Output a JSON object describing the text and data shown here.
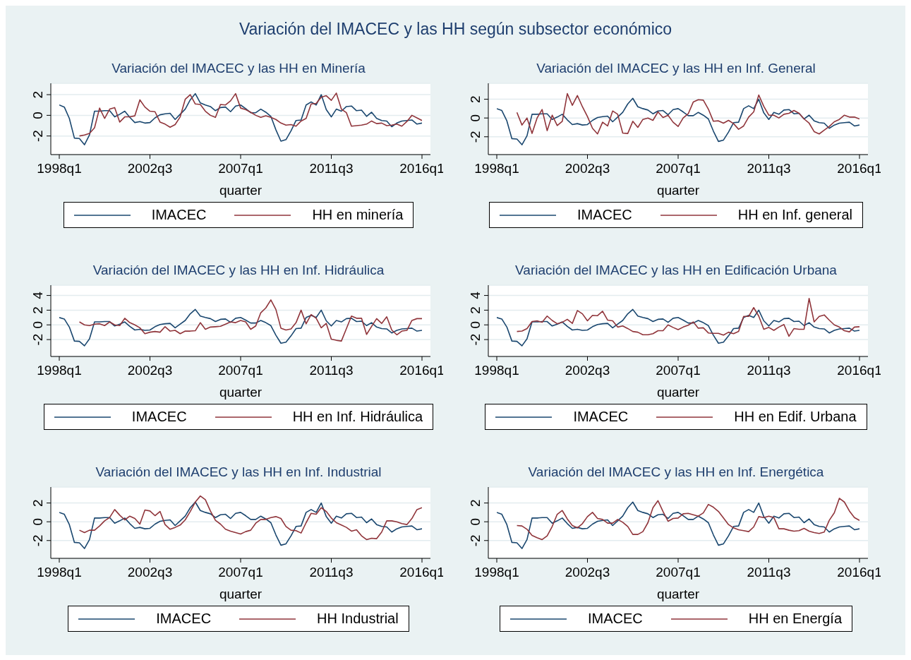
{
  "chart_data": [
    {
      "type": "line",
      "annotations": [
        "Variación del IMACEC y las HH según subsector económico"
      ],
      "title": "Variación del IMACEC y las HH en Minería",
      "xlabel": "quarter",
      "grid": "y",
      "legend": "bottom",
      "ylim": [
        -3.8,
        3.1
      ],
      "yticks": [
        -2,
        0,
        2
      ],
      "categories": [
        "1998q1",
        null,
        null,
        null,
        null,
        null,
        null,
        null,
        null,
        null,
        null,
        null,
        null,
        null,
        null,
        null,
        null,
        null,
        "2002q3",
        null,
        null,
        null,
        null,
        null,
        null,
        null,
        null,
        null,
        null,
        null,
        null,
        null,
        null,
        null,
        null,
        null,
        "2007q1",
        null,
        null,
        null,
        null,
        null,
        null,
        null,
        null,
        null,
        null,
        null,
        null,
        null,
        null,
        null,
        null,
        null,
        "2011q3",
        null,
        null,
        null,
        null,
        null,
        null,
        null,
        null,
        null,
        null,
        null,
        null,
        null,
        null,
        null,
        null,
        null,
        "2016q1"
      ],
      "series": [
        {
          "name": "IMACEC",
          "color": "#1a476f",
          "values": [
            1.0,
            0.8,
            -0.3,
            -2.2,
            -2.25,
            -2.85,
            -1.9,
            0.4,
            0.4,
            0.45,
            0.45,
            -0.15,
            0.1,
            0.4,
            -0.2,
            -0.7,
            -0.6,
            -0.75,
            -0.7,
            -0.25,
            0.05,
            0.15,
            0.2,
            -0.4,
            0.1,
            0.6,
            1.5,
            2.1,
            1.2,
            1.0,
            0.85,
            0.45,
            0.75,
            0.8,
            0.35,
            0.9,
            1.0,
            0.65,
            0.25,
            0.25,
            0.6,
            0.3,
            -0.1,
            -1.4,
            -2.5,
            -2.35,
            -1.5,
            -0.5,
            -0.45,
            1.0,
            1.3,
            1.0,
            2.0,
            0.55,
            -0.15,
            0.6,
            0.4,
            0.85,
            0.9,
            0.45,
            0.5,
            -0.1,
            0.3,
            -0.3,
            -0.5,
            -0.55,
            -1.1,
            -0.75,
            -0.55,
            -0.5,
            -0.45,
            -0.85,
            -0.75
          ]
        },
        {
          "name": "HH en minería",
          "color": "#90353b",
          "values": [
            null,
            null,
            null,
            null,
            -2.0,
            -1.9,
            -1.75,
            -1.2,
            0.7,
            -0.3,
            0.6,
            0.75,
            -0.65,
            -0.15,
            -0.15,
            -0.05,
            1.5,
            0.8,
            0.4,
            0.35,
            -0.65,
            -0.85,
            -1.15,
            -0.9,
            -0.15,
            1.55,
            2.0,
            1.1,
            1.05,
            0.4,
            0.0,
            -0.2,
            1.05,
            1.0,
            1.4,
            2.1,
            0.7,
            0.55,
            0.3,
            0.0,
            -0.2,
            -0.05,
            -0.2,
            -0.4,
            -0.75,
            -0.95,
            -0.9,
            -1.05,
            -0.55,
            -0.3,
            1.1,
            1.15,
            1.75,
            1.9,
            1.45,
            2.15,
            0.6,
            0.25,
            -1.05,
            -1.0,
            -0.95,
            -0.85,
            -0.55,
            -0.8,
            -0.75,
            -1.0,
            -0.95,
            -0.85,
            -1.05,
            -0.6,
            0.0,
            -0.25,
            -0.5
          ]
        }
      ]
    },
    {
      "type": "line",
      "title": "Variación del IMACEC y las HH en Inf. General",
      "xlabel": "quarter",
      "grid": "y",
      "legend": "bottom",
      "ylim": [
        -3.9,
        3.7
      ],
      "yticks": [
        -2,
        0,
        2
      ],
      "categories": [
        "1998q1",
        null,
        null,
        null,
        null,
        null,
        null,
        null,
        null,
        null,
        null,
        null,
        null,
        null,
        null,
        null,
        null,
        null,
        "2002q3",
        null,
        null,
        null,
        null,
        null,
        null,
        null,
        null,
        null,
        null,
        null,
        null,
        null,
        null,
        null,
        null,
        null,
        "2007q1",
        null,
        null,
        null,
        null,
        null,
        null,
        null,
        null,
        null,
        null,
        null,
        null,
        null,
        null,
        null,
        null,
        null,
        "2011q3",
        null,
        null,
        null,
        null,
        null,
        null,
        null,
        null,
        null,
        null,
        null,
        null,
        null,
        null,
        null,
        null,
        null,
        "2016q1"
      ],
      "series": [
        {
          "name": "IMACEC",
          "color": "#1a476f",
          "values": [
            1.0,
            0.8,
            -0.3,
            -2.2,
            -2.25,
            -2.85,
            -1.9,
            0.4,
            0.4,
            0.45,
            0.45,
            -0.15,
            0.1,
            0.4,
            -0.2,
            -0.7,
            -0.6,
            -0.75,
            -0.7,
            -0.25,
            0.05,
            0.15,
            0.2,
            -0.4,
            0.1,
            0.6,
            1.5,
            2.1,
            1.2,
            1.0,
            0.85,
            0.45,
            0.75,
            0.8,
            0.35,
            0.9,
            1.0,
            0.65,
            0.25,
            0.25,
            0.6,
            0.3,
            -0.1,
            -1.4,
            -2.5,
            -2.35,
            -1.5,
            -0.5,
            -0.45,
            1.0,
            1.3,
            1.0,
            2.0,
            0.55,
            -0.15,
            0.6,
            0.4,
            0.85,
            0.9,
            0.45,
            0.5,
            -0.1,
            0.3,
            -0.3,
            -0.5,
            -0.55,
            -1.1,
            -0.75,
            -0.55,
            -0.5,
            -0.45,
            -0.85,
            -0.75
          ]
        },
        {
          "name": "HH en Inf. general",
          "color": "#90353b",
          "values": [
            null,
            null,
            null,
            null,
            0.6,
            -0.75,
            0.0,
            -1.65,
            0.0,
            0.9,
            -1.35,
            0.3,
            -0.8,
            -0.35,
            2.6,
            1.35,
            2.4,
            1.2,
            0.15,
            -1.1,
            -1.7,
            -0.45,
            -0.85,
            0.75,
            0.4,
            -1.6,
            -1.65,
            -0.35,
            -1.0,
            -0.15,
            0.0,
            -0.25,
            0.65,
            0.05,
            0.3,
            -0.45,
            -0.9,
            0.0,
            0.45,
            1.7,
            1.95,
            1.9,
            0.95,
            -0.35,
            -0.3,
            -0.55,
            -0.25,
            -0.6,
            -1.2,
            -0.85,
            0.1,
            0.65,
            2.45,
            1.25,
            0.3,
            0.3,
            0.0,
            0.4,
            0.5,
            0.8,
            0.5,
            -0.1,
            -0.55,
            -1.45,
            -1.7,
            -1.3,
            -0.9,
            -0.4,
            -0.15,
            0.3,
            0.1,
            0.1,
            -0.1
          ]
        }
      ]
    },
    {
      "type": "line",
      "title": "Variación del IMACEC y las HH en Inf. Hidráulica",
      "xlabel": "quarter",
      "grid": "y",
      "legend": "bottom",
      "ylim": [
        -4.3,
        5.4
      ],
      "yticks": [
        -2,
        0,
        2,
        4
      ],
      "categories": [
        "1998q1",
        null,
        null,
        null,
        null,
        null,
        null,
        null,
        null,
        null,
        null,
        null,
        null,
        null,
        null,
        null,
        null,
        null,
        "2002q3",
        null,
        null,
        null,
        null,
        null,
        null,
        null,
        null,
        null,
        null,
        null,
        null,
        null,
        null,
        null,
        null,
        null,
        "2007q1",
        null,
        null,
        null,
        null,
        null,
        null,
        null,
        null,
        null,
        null,
        null,
        null,
        null,
        null,
        null,
        null,
        null,
        "2011q3",
        null,
        null,
        null,
        null,
        null,
        null,
        null,
        null,
        null,
        null,
        null,
        null,
        null,
        null,
        null,
        null,
        null,
        "2016q1"
      ],
      "series": [
        {
          "name": "IMACEC",
          "color": "#1a476f",
          "values": [
            1.0,
            0.8,
            -0.3,
            -2.2,
            -2.25,
            -2.85,
            -1.9,
            0.4,
            0.4,
            0.45,
            0.45,
            -0.15,
            0.1,
            0.4,
            -0.2,
            -0.7,
            -0.6,
            -0.75,
            -0.7,
            -0.25,
            0.05,
            0.15,
            0.2,
            -0.4,
            0.1,
            0.6,
            1.5,
            2.1,
            1.2,
            1.0,
            0.85,
            0.45,
            0.75,
            0.8,
            0.35,
            0.9,
            1.0,
            0.65,
            0.25,
            0.25,
            0.6,
            0.3,
            -0.1,
            -1.4,
            -2.5,
            -2.35,
            -1.5,
            -0.5,
            -0.45,
            1.0,
            1.3,
            1.0,
            2.0,
            0.55,
            -0.15,
            0.6,
            0.4,
            0.85,
            0.9,
            0.45,
            0.5,
            -0.1,
            0.3,
            -0.3,
            -0.5,
            -0.55,
            -1.1,
            -0.75,
            -0.55,
            -0.5,
            -0.45,
            -0.85,
            -0.75
          ]
        },
        {
          "name": "HH en Inf. Hidráulica",
          "color": "#90353b",
          "values": [
            null,
            null,
            null,
            null,
            0.4,
            0.0,
            -0.1,
            0.1,
            0.15,
            -0.1,
            0.4,
            0.0,
            -0.1,
            0.9,
            0.3,
            0.0,
            -0.4,
            -1.2,
            -1.0,
            -0.9,
            -1.0,
            -0.25,
            -0.85,
            -0.75,
            -1.2,
            -0.85,
            -0.85,
            -0.8,
            0.3,
            -0.6,
            -0.3,
            -0.25,
            -0.2,
            0.1,
            0.4,
            0.3,
            0.6,
            0.4,
            -0.6,
            -0.15,
            1.65,
            2.3,
            3.4,
            2.1,
            -0.45,
            -0.7,
            -0.55,
            0.3,
            2.0,
            0.15,
            1.4,
            0.9,
            -0.4,
            0.2,
            -1.95,
            -2.1,
            -2.2,
            -0.5,
            1.2,
            0.9,
            0.9,
            -1.3,
            -0.2,
            0.85,
            0.2,
            1.1,
            -0.7,
            -1.35,
            -0.85,
            -0.75,
            0.6,
            0.85,
            0.85
          ]
        }
      ]
    },
    {
      "type": "line",
      "title": "Variación del IMACEC y las HH en Edificación Urbana",
      "xlabel": "quarter",
      "grid": "y",
      "legend": "bottom",
      "ylim": [
        -4.3,
        5.4
      ],
      "yticks": [
        -2,
        0,
        2,
        4
      ],
      "categories": [
        "1998q1",
        null,
        null,
        null,
        null,
        null,
        null,
        null,
        null,
        null,
        null,
        null,
        null,
        null,
        null,
        null,
        null,
        null,
        "2002q3",
        null,
        null,
        null,
        null,
        null,
        null,
        null,
        null,
        null,
        null,
        null,
        null,
        null,
        null,
        null,
        null,
        null,
        "2007q1",
        null,
        null,
        null,
        null,
        null,
        null,
        null,
        null,
        null,
        null,
        null,
        null,
        null,
        null,
        null,
        null,
        null,
        "2011q3",
        null,
        null,
        null,
        null,
        null,
        null,
        null,
        null,
        null,
        null,
        null,
        null,
        null,
        null,
        null,
        null,
        null,
        "2016q1"
      ],
      "series": [
        {
          "name": "IMACEC",
          "color": "#1a476f",
          "values": [
            1.0,
            0.8,
            -0.3,
            -2.2,
            -2.25,
            -2.85,
            -1.9,
            0.4,
            0.4,
            0.45,
            0.45,
            -0.15,
            0.1,
            0.4,
            -0.2,
            -0.7,
            -0.6,
            -0.75,
            -0.7,
            -0.25,
            0.05,
            0.15,
            0.2,
            -0.4,
            0.1,
            0.6,
            1.5,
            2.1,
            1.2,
            1.0,
            0.85,
            0.45,
            0.75,
            0.8,
            0.35,
            0.9,
            1.0,
            0.65,
            0.25,
            0.25,
            0.6,
            0.3,
            -0.1,
            -1.4,
            -2.5,
            -2.35,
            -1.5,
            -0.5,
            -0.45,
            1.0,
            1.3,
            1.0,
            2.0,
            0.55,
            -0.15,
            0.6,
            0.4,
            0.85,
            0.9,
            0.45,
            0.5,
            -0.1,
            0.3,
            -0.3,
            -0.5,
            -0.55,
            -1.1,
            -0.75,
            -0.55,
            -0.5,
            -0.45,
            -0.85,
            -0.75
          ]
        },
        {
          "name": "HH en Edif. Urbana",
          "color": "#90353b",
          "values": [
            null,
            null,
            null,
            null,
            -0.9,
            -0.85,
            -0.5,
            0.45,
            0.55,
            0.35,
            1.2,
            0.6,
            0.15,
            0.35,
            0.75,
            0.2,
            1.95,
            1.5,
            0.55,
            1.3,
            1.25,
            1.85,
            0.65,
            0.55,
            -0.3,
            -0.15,
            -0.5,
            -0.9,
            -1.0,
            -1.35,
            -1.35,
            -1.2,
            -0.8,
            -0.8,
            0.0,
            -0.35,
            -0.65,
            -0.3,
            -0.05,
            0.4,
            -0.45,
            -0.4,
            -1.1,
            -1.15,
            -1.15,
            -1.4,
            -1.0,
            -1.2,
            -0.9,
            1.15,
            1.15,
            2.35,
            1.2,
            -0.6,
            -0.35,
            -0.75,
            -0.3,
            0.05,
            -1.55,
            -0.5,
            -0.6,
            -0.6,
            3.6,
            0.4,
            1.15,
            1.35,
            0.65,
            0.0,
            -0.3,
            -0.8,
            -0.95,
            -0.3,
            -0.25
          ]
        }
      ]
    },
    {
      "type": "line",
      "title": "Variación del IMACEC y las HH en Inf. Industrial",
      "xlabel": "quarter",
      "grid": "y",
      "legend": "bottom",
      "ylim": [
        -3.9,
        3.7
      ],
      "yticks": [
        -2,
        0,
        2
      ],
      "categories": [
        "1998q1",
        null,
        null,
        null,
        null,
        null,
        null,
        null,
        null,
        null,
        null,
        null,
        null,
        null,
        null,
        null,
        null,
        null,
        "2002q3",
        null,
        null,
        null,
        null,
        null,
        null,
        null,
        null,
        null,
        null,
        null,
        null,
        null,
        null,
        null,
        null,
        null,
        "2007q1",
        null,
        null,
        null,
        null,
        null,
        null,
        null,
        null,
        null,
        null,
        null,
        null,
        null,
        null,
        null,
        null,
        null,
        "2011q3",
        null,
        null,
        null,
        null,
        null,
        null,
        null,
        null,
        null,
        null,
        null,
        null,
        null,
        null,
        null,
        null,
        null,
        "2016q1"
      ],
      "series": [
        {
          "name": "IMACEC",
          "color": "#1a476f",
          "values": [
            1.0,
            0.8,
            -0.3,
            -2.2,
            -2.25,
            -2.85,
            -1.9,
            0.4,
            0.4,
            0.45,
            0.45,
            -0.15,
            0.1,
            0.4,
            -0.2,
            -0.7,
            -0.6,
            -0.75,
            -0.7,
            -0.25,
            0.05,
            0.15,
            0.2,
            -0.4,
            0.1,
            0.6,
            1.5,
            2.1,
            1.2,
            1.0,
            0.85,
            0.45,
            0.75,
            0.8,
            0.35,
            0.9,
            1.0,
            0.65,
            0.25,
            0.25,
            0.6,
            0.3,
            -0.1,
            -1.4,
            -2.5,
            -2.35,
            -1.5,
            -0.5,
            -0.45,
            1.0,
            1.3,
            1.0,
            2.0,
            0.55,
            -0.15,
            0.6,
            0.4,
            0.85,
            0.9,
            0.45,
            0.5,
            -0.1,
            0.3,
            -0.3,
            -0.5,
            -0.55,
            -1.1,
            -0.75,
            -0.55,
            -0.5,
            -0.45,
            -0.85,
            -0.75
          ]
        },
        {
          "name": "HH Industrial",
          "color": "#90353b",
          "values": [
            null,
            null,
            null,
            null,
            -0.9,
            -1.15,
            -0.9,
            -0.9,
            -0.45,
            0.1,
            0.45,
            1.3,
            0.7,
            0.2,
            0.6,
            0.35,
            -0.25,
            1.25,
            1.15,
            0.65,
            1.1,
            -0.3,
            -0.8,
            -0.6,
            -0.35,
            0.2,
            1.1,
            2.1,
            2.75,
            2.35,
            1.15,
            0.15,
            -0.25,
            -0.8,
            -1.0,
            -1.15,
            -1.3,
            -1.05,
            -0.9,
            -0.15,
            0.25,
            0.25,
            0.45,
            0.55,
            0.35,
            -0.5,
            -0.9,
            -0.95,
            -1.2,
            -0.1,
            0.9,
            0.8,
            1.5,
            1.1,
            0.4,
            -0.1,
            -0.35,
            -0.6,
            -1.0,
            -0.85,
            -1.5,
            -1.9,
            -1.75,
            -1.8,
            -1.1,
            0.1,
            0.1,
            0.0,
            -0.2,
            -0.3,
            0.35,
            1.3,
            1.5
          ]
        }
      ]
    },
    {
      "type": "line",
      "title": "Variación del IMACEC y las HH en Inf. Energética",
      "xlabel": "quarter",
      "grid": "y",
      "legend": "bottom",
      "ylim": [
        -3.9,
        3.7
      ],
      "yticks": [
        -2,
        0,
        2
      ],
      "categories": [
        "1998q1",
        null,
        null,
        null,
        null,
        null,
        null,
        null,
        null,
        null,
        null,
        null,
        null,
        null,
        null,
        null,
        null,
        null,
        "2002q3",
        null,
        null,
        null,
        null,
        null,
        null,
        null,
        null,
        null,
        null,
        null,
        null,
        null,
        null,
        null,
        null,
        null,
        "2007q1",
        null,
        null,
        null,
        null,
        null,
        null,
        null,
        null,
        null,
        null,
        null,
        null,
        null,
        null,
        null,
        null,
        null,
        "2011q3",
        null,
        null,
        null,
        null,
        null,
        null,
        null,
        null,
        null,
        null,
        null,
        null,
        null,
        null,
        null,
        null,
        null,
        "2016q1"
      ],
      "series": [
        {
          "name": "IMACEC",
          "color": "#1a476f",
          "values": [
            1.0,
            0.8,
            -0.3,
            -2.2,
            -2.25,
            -2.85,
            -1.9,
            0.4,
            0.4,
            0.45,
            0.45,
            -0.15,
            0.1,
            0.4,
            -0.2,
            -0.7,
            -0.6,
            -0.75,
            -0.7,
            -0.25,
            0.05,
            0.15,
            0.2,
            -0.4,
            0.1,
            0.6,
            1.5,
            2.1,
            1.2,
            1.0,
            0.85,
            0.45,
            0.75,
            0.8,
            0.35,
            0.9,
            1.0,
            0.65,
            0.25,
            0.25,
            0.6,
            0.3,
            -0.1,
            -1.4,
            -2.5,
            -2.35,
            -1.5,
            -0.5,
            -0.45,
            1.0,
            1.3,
            1.0,
            2.0,
            0.55,
            -0.15,
            0.6,
            0.4,
            0.85,
            0.9,
            0.45,
            0.5,
            -0.1,
            0.3,
            -0.3,
            -0.5,
            -0.55,
            -1.1,
            -0.75,
            -0.55,
            -0.5,
            -0.45,
            -0.85,
            -0.75
          ]
        },
        {
          "name": "HH en Energía",
          "color": "#90353b",
          "values": [
            null,
            null,
            null,
            null,
            -0.4,
            -0.45,
            -0.8,
            -1.45,
            -1.7,
            -1.9,
            -1.5,
            -0.5,
            0.8,
            1.2,
            0.3,
            -0.4,
            -0.65,
            -0.2,
            0.55,
            1.0,
            0.35,
            0.25,
            -0.15,
            -0.15,
            0.25,
            -0.05,
            -0.5,
            -1.35,
            -1.35,
            -1.05,
            -0.1,
            1.5,
            2.25,
            1.1,
            0.05,
            0.35,
            0.4,
            0.85,
            0.9,
            0.75,
            0.6,
            0.95,
            1.85,
            1.55,
            1.1,
            0.4,
            -0.3,
            -0.65,
            -0.85,
            -0.95,
            -1.05,
            -0.55,
            0.55,
            0.45,
            0.6,
            0.45,
            -0.75,
            -0.75,
            -0.9,
            -1.0,
            -0.95,
            -0.7,
            -1.0,
            -1.15,
            -1.25,
            -1.1,
            0.15,
            0.95,
            2.5,
            2.1,
            1.15,
            0.45,
            0.15
          ]
        }
      ]
    }
  ]
}
